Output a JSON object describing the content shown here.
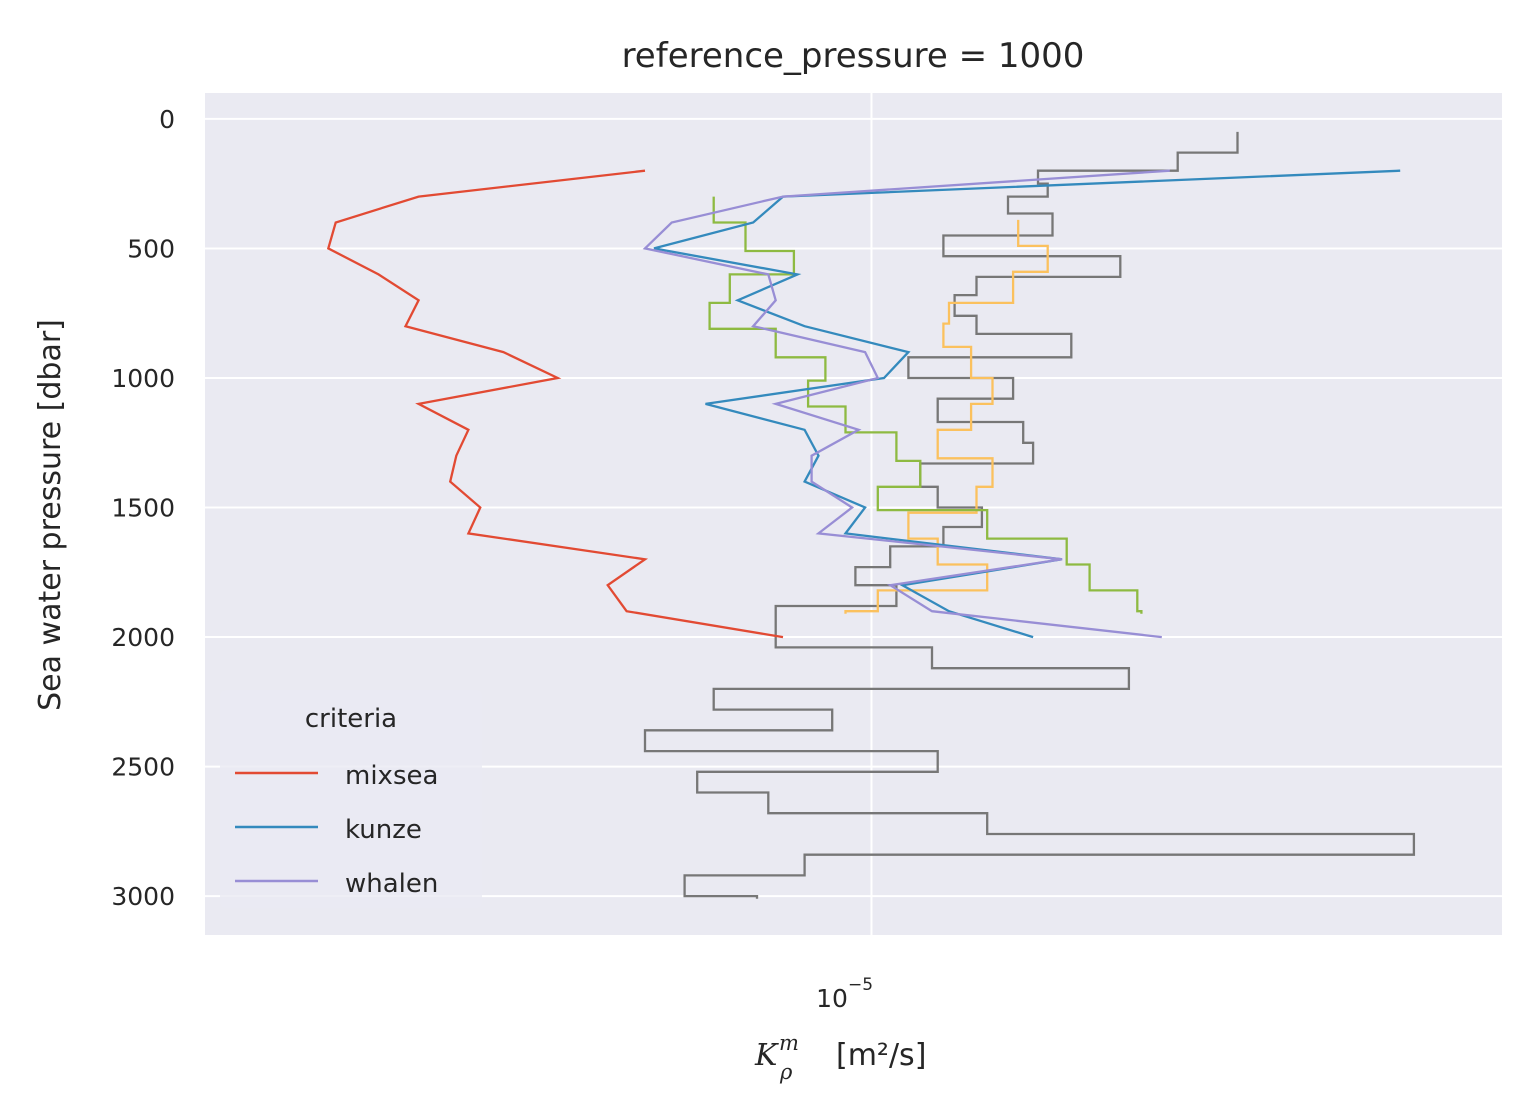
{
  "chart_data": {
    "type": "line",
    "title": "reference_pressure = 1000",
    "xlabel": {
      "symbol": "K",
      "sub": "ρ",
      "sup": "m",
      "unit": "[m²/s]"
    },
    "ylabel": "Sea water pressure [dbar]",
    "xscale": "log",
    "xlim": [
      3.5e-06,
      2.7e-05
    ],
    "ylim": [
      3150,
      -100
    ],
    "yticks": [
      0,
      500,
      1000,
      1500,
      2000,
      2500,
      3000
    ],
    "ytick_labels": [
      "0",
      "500",
      "1000",
      "1500",
      "2000",
      "2500",
      "3000"
    ],
    "xtick": {
      "value": 1e-05,
      "base": "10",
      "exponent": "−5"
    },
    "legend": {
      "title": "criteria",
      "placement": "lower-left",
      "entries": [
        "mixsea",
        "kunze",
        "whalen"
      ]
    },
    "colors": {
      "background": "#eaeaf2",
      "grid": "#ffffff",
      "mixsea": "#e24a33",
      "kunze": "#348abd",
      "whalen": "#988ed5",
      "gray_steps": "#777777",
      "yellow_steps": "#fbc15e",
      "green_steps": "#8eba42"
    },
    "series": [
      {
        "name": "mixsea",
        "kind": "line",
        "x": [
          7e-06,
          4.9e-06,
          4.3e-06,
          4.25e-06,
          4.6e-06,
          4.9e-06,
          4.8e-06,
          5.6e-06,
          6.1e-06,
          4.9e-06,
          5.3e-06,
          5.2e-06,
          5.15e-06,
          5.4e-06,
          5.3e-06,
          7e-06,
          6.6e-06,
          6.8e-06,
          8.7e-06
        ],
        "y": [
          200,
          300,
          400,
          500,
          600,
          700,
          800,
          900,
          1000,
          1100,
          1200,
          1300,
          1400,
          1500,
          1600,
          1700,
          1800,
          1900,
          2000
        ]
      },
      {
        "name": "kunze",
        "kind": "line",
        "x": [
          2.3e-05,
          8.7e-06,
          8.3e-06,
          7.1e-06,
          8.9e-06,
          8.1e-06,
          9e-06,
          1.06e-05,
          1.02e-05,
          7.7e-06,
          9e-06,
          9.2e-06,
          9e-06,
          9.9e-06,
          9.6e-06,
          1.35e-05,
          1.05e-05,
          1.13e-05,
          1.29e-05
        ],
        "y": [
          200,
          300,
          400,
          500,
          600,
          700,
          800,
          900,
          1000,
          1100,
          1200,
          1300,
          1400,
          1500,
          1600,
          1700,
          1800,
          1900,
          2000
        ]
      },
      {
        "name": "whalen",
        "kind": "line",
        "x": [
          1.6e-05,
          8.7e-06,
          7.3e-06,
          7e-06,
          8.5e-06,
          8.6e-06,
          8.3e-06,
          9.9e-06,
          1.01e-05,
          8.6e-06,
          9.8e-06,
          9.1e-06,
          9.1e-06,
          9.7e-06,
          9.2e-06,
          1.35e-05,
          1.03e-05,
          1.1e-05,
          1.58e-05
        ],
        "y": [
          200,
          300,
          400,
          500,
          600,
          700,
          800,
          900,
          1000,
          1100,
          1200,
          1300,
          1400,
          1500,
          1600,
          1700,
          1800,
          1900,
          2000
        ]
      },
      {
        "name": "gray_steps",
        "kind": "steps",
        "bins": [
          {
            "top": 50,
            "bottom": 130,
            "x": 1.78e-05
          },
          {
            "top": 130,
            "bottom": 200,
            "x": 1.62e-05
          },
          {
            "top": 200,
            "bottom": 250,
            "x": 1.3e-05
          },
          {
            "top": 250,
            "bottom": 300,
            "x": 1.32e-05
          },
          {
            "top": 300,
            "bottom": 365,
            "x": 1.24e-05
          },
          {
            "top": 365,
            "bottom": 450,
            "x": 1.33e-05
          },
          {
            "top": 450,
            "bottom": 530,
            "x": 1.12e-05
          },
          {
            "top": 530,
            "bottom": 610,
            "x": 1.48e-05
          },
          {
            "top": 610,
            "bottom": 680,
            "x": 1.18e-05
          },
          {
            "top": 680,
            "bottom": 760,
            "x": 1.14e-05
          },
          {
            "top": 760,
            "bottom": 830,
            "x": 1.18e-05
          },
          {
            "top": 830,
            "bottom": 920,
            "x": 1.37e-05
          },
          {
            "top": 920,
            "bottom": 1000,
            "x": 1.06e-05
          },
          {
            "top": 1000,
            "bottom": 1080,
            "x": 1.25e-05
          },
          {
            "top": 1080,
            "bottom": 1170,
            "x": 1.11e-05
          },
          {
            "top": 1170,
            "bottom": 1250,
            "x": 1.27e-05
          },
          {
            "top": 1250,
            "bottom": 1330,
            "x": 1.29e-05
          },
          {
            "top": 1330,
            "bottom": 1420,
            "x": 1.08e-05
          },
          {
            "top": 1420,
            "bottom": 1500,
            "x": 1.11e-05
          },
          {
            "top": 1500,
            "bottom": 1575,
            "x": 1.19e-05
          },
          {
            "top": 1575,
            "bottom": 1650,
            "x": 1.12e-05
          },
          {
            "top": 1650,
            "bottom": 1730,
            "x": 1.03e-05
          },
          {
            "top": 1730,
            "bottom": 1800,
            "x": 9.75e-06
          },
          {
            "top": 1800,
            "bottom": 1880,
            "x": 1.04e-05
          },
          {
            "top": 1880,
            "bottom": 1960,
            "x": 8.6e-06
          },
          {
            "top": 1960,
            "bottom": 2040,
            "x": 8.6e-06
          },
          {
            "top": 2040,
            "bottom": 2120,
            "x": 1.1e-05
          },
          {
            "top": 2120,
            "bottom": 2200,
            "x": 1.5e-05
          },
          {
            "top": 2200,
            "bottom": 2280,
            "x": 7.8e-06
          },
          {
            "top": 2280,
            "bottom": 2360,
            "x": 9.4e-06
          },
          {
            "top": 2360,
            "bottom": 2440,
            "x": 7e-06
          },
          {
            "top": 2440,
            "bottom": 2520,
            "x": 1.11e-05
          },
          {
            "top": 2520,
            "bottom": 2600,
            "x": 7.6e-06
          },
          {
            "top": 2600,
            "bottom": 2680,
            "x": 8.5e-06
          },
          {
            "top": 2680,
            "bottom": 2760,
            "x": 1.2e-05
          },
          {
            "top": 2760,
            "bottom": 2840,
            "x": 2.35e-05
          },
          {
            "top": 2840,
            "bottom": 2920,
            "x": 9e-06
          },
          {
            "top": 2920,
            "bottom": 3000,
            "x": 7.45e-06
          },
          {
            "top": 3000,
            "bottom": 3010,
            "x": 8.35e-06
          }
        ]
      },
      {
        "name": "yellow_steps",
        "kind": "steps",
        "bins": [
          {
            "top": 390,
            "bottom": 490,
            "x": 1.26e-05
          },
          {
            "top": 490,
            "bottom": 590,
            "x": 1.32e-05
          },
          {
            "top": 590,
            "bottom": 710,
            "x": 1.25e-05
          },
          {
            "top": 710,
            "bottom": 790,
            "x": 1.13e-05
          },
          {
            "top": 790,
            "bottom": 880,
            "x": 1.12e-05
          },
          {
            "top": 880,
            "bottom": 1000,
            "x": 1.17e-05
          },
          {
            "top": 1000,
            "bottom": 1100,
            "x": 1.21e-05
          },
          {
            "top": 1100,
            "bottom": 1200,
            "x": 1.17e-05
          },
          {
            "top": 1200,
            "bottom": 1310,
            "x": 1.11e-05
          },
          {
            "top": 1310,
            "bottom": 1420,
            "x": 1.21e-05
          },
          {
            "top": 1420,
            "bottom": 1520,
            "x": 1.18e-05
          },
          {
            "top": 1520,
            "bottom": 1620,
            "x": 1.06e-05
          },
          {
            "top": 1620,
            "bottom": 1720,
            "x": 1.11e-05
          },
          {
            "top": 1720,
            "bottom": 1820,
            "x": 1.2e-05
          },
          {
            "top": 1820,
            "bottom": 1900,
            "x": 1.01e-05
          },
          {
            "top": 1900,
            "bottom": 1910,
            "x": 9.6e-06
          }
        ]
      },
      {
        "name": "green_steps",
        "kind": "steps",
        "bins": [
          {
            "top": 300,
            "bottom": 400,
            "x": 7.8e-06
          },
          {
            "top": 400,
            "bottom": 510,
            "x": 8.2e-06
          },
          {
            "top": 510,
            "bottom": 600,
            "x": 8.85e-06
          },
          {
            "top": 600,
            "bottom": 710,
            "x": 8e-06
          },
          {
            "top": 710,
            "bottom": 810,
            "x": 7.75e-06
          },
          {
            "top": 810,
            "bottom": 920,
            "x": 8.6e-06
          },
          {
            "top": 920,
            "bottom": 1010,
            "x": 9.3e-06
          },
          {
            "top": 1010,
            "bottom": 1110,
            "x": 9.05e-06
          },
          {
            "top": 1110,
            "bottom": 1210,
            "x": 9.6e-06
          },
          {
            "top": 1210,
            "bottom": 1320,
            "x": 1.04e-05
          },
          {
            "top": 1320,
            "bottom": 1420,
            "x": 1.08e-05
          },
          {
            "top": 1420,
            "bottom": 1510,
            "x": 1.01e-05
          },
          {
            "top": 1510,
            "bottom": 1620,
            "x": 1.2e-05
          },
          {
            "top": 1620,
            "bottom": 1720,
            "x": 1.36e-05
          },
          {
            "top": 1720,
            "bottom": 1820,
            "x": 1.41e-05
          },
          {
            "top": 1820,
            "bottom": 1900,
            "x": 1.52e-05
          },
          {
            "top": 1900,
            "bottom": 1910,
            "x": 1.53e-05
          }
        ]
      }
    ]
  }
}
